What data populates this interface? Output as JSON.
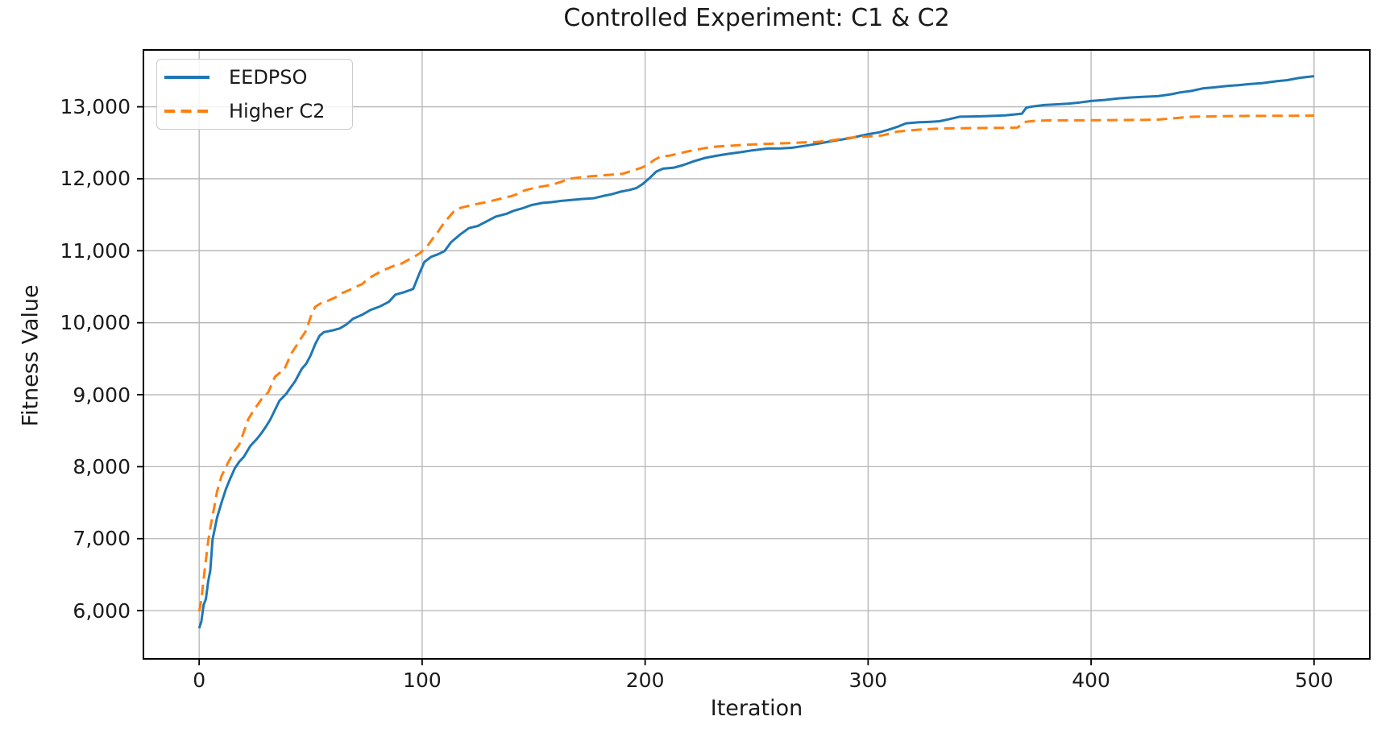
{
  "chart_data": {
    "type": "line",
    "title": "Controlled Experiment: C1 & C2",
    "xlabel": "Iteration",
    "ylabel": "Fitness Value",
    "xlim": [
      -25,
      525
    ],
    "ylim": [
      5330,
      13790
    ],
    "grid": true,
    "legend_position": "upper left",
    "x_ticks": [
      0,
      100,
      200,
      300,
      400,
      500
    ],
    "x_tick_labels": [
      "0",
      "100",
      "200",
      "300",
      "400",
      "500"
    ],
    "y_ticks": [
      6000,
      7000,
      8000,
      9000,
      10000,
      11000,
      12000,
      13000
    ],
    "y_tick_labels": [
      "6,000",
      "7,000",
      "8,000",
      "9,000",
      "10,000",
      "11,000",
      "12,000",
      "13,000"
    ],
    "colors": {
      "grid": "#b4b4b4",
      "spine": "#000000",
      "text": "#1a1a1a",
      "background": "#ffffff"
    },
    "series": [
      {
        "name": "EEDPSO",
        "color": "#1f77b4",
        "style": "solid",
        "points": [
          [
            0,
            5755
          ],
          [
            1,
            5850
          ],
          [
            2,
            6080
          ],
          [
            3,
            6160
          ],
          [
            4,
            6400
          ],
          [
            5,
            6560
          ],
          [
            6,
            6990
          ],
          [
            7,
            7140
          ],
          [
            8,
            7290
          ],
          [
            10,
            7500
          ],
          [
            12,
            7690
          ],
          [
            14,
            7840
          ],
          [
            16,
            7980
          ],
          [
            18,
            8070
          ],
          [
            20,
            8135
          ],
          [
            23,
            8290
          ],
          [
            26,
            8390
          ],
          [
            28,
            8470
          ],
          [
            30,
            8560
          ],
          [
            32,
            8660
          ],
          [
            34,
            8790
          ],
          [
            36,
            8915
          ],
          [
            39,
            9010
          ],
          [
            41,
            9100
          ],
          [
            43,
            9185
          ],
          [
            46,
            9360
          ],
          [
            48,
            9430
          ],
          [
            50,
            9545
          ],
          [
            52,
            9700
          ],
          [
            54,
            9820
          ],
          [
            56,
            9870
          ],
          [
            60,
            9895
          ],
          [
            63,
            9920
          ],
          [
            66,
            9975
          ],
          [
            69,
            10055
          ],
          [
            73,
            10110
          ],
          [
            77,
            10180
          ],
          [
            81,
            10225
          ],
          [
            85,
            10290
          ],
          [
            88,
            10390
          ],
          [
            92,
            10425
          ],
          [
            96,
            10470
          ],
          [
            99,
            10700
          ],
          [
            101,
            10845
          ],
          [
            104,
            10915
          ],
          [
            107,
            10950
          ],
          [
            110,
            10995
          ],
          [
            113,
            11120
          ],
          [
            117,
            11225
          ],
          [
            121,
            11315
          ],
          [
            125,
            11345
          ],
          [
            129,
            11410
          ],
          [
            133,
            11475
          ],
          [
            138,
            11515
          ],
          [
            141,
            11555
          ],
          [
            145,
            11590
          ],
          [
            149,
            11635
          ],
          [
            154,
            11665
          ],
          [
            158,
            11675
          ],
          [
            163,
            11695
          ],
          [
            167,
            11705
          ],
          [
            172,
            11720
          ],
          [
            177,
            11730
          ],
          [
            181,
            11760
          ],
          [
            185,
            11785
          ],
          [
            189,
            11820
          ],
          [
            193,
            11845
          ],
          [
            196,
            11870
          ],
          [
            199,
            11930
          ],
          [
            202,
            12010
          ],
          [
            205,
            12100
          ],
          [
            208,
            12140
          ],
          [
            213,
            12155
          ],
          [
            217,
            12190
          ],
          [
            222,
            12245
          ],
          [
            227,
            12290
          ],
          [
            232,
            12320
          ],
          [
            237,
            12345
          ],
          [
            243,
            12370
          ],
          [
            248,
            12395
          ],
          [
            255,
            12420
          ],
          [
            261,
            12422
          ],
          [
            266,
            12432
          ],
          [
            271,
            12455
          ],
          [
            278,
            12490
          ],
          [
            283,
            12520
          ],
          [
            288,
            12545
          ],
          [
            293,
            12570
          ],
          [
            297,
            12600
          ],
          [
            301,
            12625
          ],
          [
            305,
            12645
          ],
          [
            309,
            12680
          ],
          [
            313,
            12720
          ],
          [
            317,
            12770
          ],
          [
            323,
            12785
          ],
          [
            328,
            12792
          ],
          [
            332,
            12800
          ],
          [
            336,
            12825
          ],
          [
            341,
            12862
          ],
          [
            347,
            12866
          ],
          [
            352,
            12870
          ],
          [
            357,
            12875
          ],
          [
            362,
            12882
          ],
          [
            366,
            12895
          ],
          [
            369,
            12905
          ],
          [
            371,
            12990
          ],
          [
            375,
            13010
          ],
          [
            379,
            13025
          ],
          [
            385,
            13035
          ],
          [
            390,
            13045
          ],
          [
            395,
            13060
          ],
          [
            400,
            13080
          ],
          [
            406,
            13095
          ],
          [
            412,
            13115
          ],
          [
            418,
            13130
          ],
          [
            424,
            13140
          ],
          [
            430,
            13148
          ],
          [
            436,
            13175
          ],
          [
            440,
            13200
          ],
          [
            445,
            13220
          ],
          [
            450,
            13255
          ],
          [
            455,
            13270
          ],
          [
            461,
            13290
          ],
          [
            466,
            13300
          ],
          [
            471,
            13315
          ],
          [
            477,
            13330
          ],
          [
            483,
            13355
          ],
          [
            488,
            13370
          ],
          [
            493,
            13400
          ],
          [
            497,
            13415
          ],
          [
            500,
            13425
          ]
        ]
      },
      {
        "name": "Higher C2",
        "color": "#ff7f0e",
        "style": "dashed",
        "points": [
          [
            0,
            5990
          ],
          [
            1,
            6150
          ],
          [
            2,
            6440
          ],
          [
            3,
            6700
          ],
          [
            4,
            6960
          ],
          [
            5,
            7150
          ],
          [
            6,
            7320
          ],
          [
            7,
            7480
          ],
          [
            8,
            7650
          ],
          [
            10,
            7870
          ],
          [
            13,
            8060
          ],
          [
            16,
            8225
          ],
          [
            18,
            8310
          ],
          [
            20,
            8480
          ],
          [
            22,
            8660
          ],
          [
            24,
            8760
          ],
          [
            26,
            8850
          ],
          [
            28,
            8940
          ],
          [
            31,
            9035
          ],
          [
            33,
            9180
          ],
          [
            34,
            9250
          ],
          [
            36,
            9300
          ],
          [
            38,
            9335
          ],
          [
            40,
            9480
          ],
          [
            41,
            9555
          ],
          [
            44,
            9700
          ],
          [
            46,
            9800
          ],
          [
            48,
            9890
          ],
          [
            50,
            10080
          ],
          [
            52,
            10220
          ],
          [
            55,
            10280
          ],
          [
            58,
            10310
          ],
          [
            61,
            10350
          ],
          [
            64,
            10410
          ],
          [
            67,
            10450
          ],
          [
            70,
            10495
          ],
          [
            73,
            10535
          ],
          [
            76,
            10615
          ],
          [
            79,
            10670
          ],
          [
            82,
            10720
          ],
          [
            85,
            10760
          ],
          [
            88,
            10800
          ],
          [
            91,
            10825
          ],
          [
            93,
            10860
          ],
          [
            96,
            10910
          ],
          [
            99,
            10965
          ],
          [
            102,
            11050
          ],
          [
            105,
            11180
          ],
          [
            107,
            11260
          ],
          [
            109,
            11350
          ],
          [
            111,
            11430
          ],
          [
            114,
            11540
          ],
          [
            116,
            11585
          ],
          [
            119,
            11610
          ],
          [
            123,
            11640
          ],
          [
            128,
            11670
          ],
          [
            132,
            11700
          ],
          [
            136,
            11730
          ],
          [
            140,
            11760
          ],
          [
            143,
            11790
          ],
          [
            146,
            11840
          ],
          [
            150,
            11870
          ],
          [
            153,
            11890
          ],
          [
            157,
            11910
          ],
          [
            160,
            11935
          ],
          [
            163,
            11965
          ],
          [
            166,
            12000
          ],
          [
            171,
            12020
          ],
          [
            176,
            12035
          ],
          [
            181,
            12048
          ],
          [
            186,
            12060
          ],
          [
            190,
            12070
          ],
          [
            194,
            12110
          ],
          [
            198,
            12150
          ],
          [
            201,
            12190
          ],
          [
            204,
            12260
          ],
          [
            207,
            12310
          ],
          [
            211,
            12322
          ],
          [
            215,
            12350
          ],
          [
            219,
            12380
          ],
          [
            224,
            12410
          ],
          [
            228,
            12432
          ],
          [
            233,
            12450
          ],
          [
            238,
            12458
          ],
          [
            243,
            12470
          ],
          [
            250,
            12480
          ],
          [
            257,
            12487
          ],
          [
            264,
            12495
          ],
          [
            271,
            12505
          ],
          [
            277,
            12512
          ],
          [
            283,
            12530
          ],
          [
            290,
            12565
          ],
          [
            296,
            12580
          ],
          [
            301,
            12590
          ],
          [
            306,
            12600
          ],
          [
            310,
            12630
          ],
          [
            313,
            12655
          ],
          [
            318,
            12670
          ],
          [
            324,
            12685
          ],
          [
            330,
            12695
          ],
          [
            336,
            12700
          ],
          [
            344,
            12703
          ],
          [
            352,
            12706
          ],
          [
            360,
            12708
          ],
          [
            367,
            12711
          ],
          [
            370,
            12790
          ],
          [
            375,
            12805
          ],
          [
            382,
            12812
          ],
          [
            390,
            12812
          ],
          [
            400,
            12813
          ],
          [
            410,
            12815
          ],
          [
            420,
            12818
          ],
          [
            430,
            12822
          ],
          [
            437,
            12840
          ],
          [
            443,
            12858
          ],
          [
            447,
            12862
          ],
          [
            453,
            12866
          ],
          [
            460,
            12870
          ],
          [
            470,
            12873
          ],
          [
            480,
            12875
          ],
          [
            490,
            12876
          ],
          [
            500,
            12878
          ]
        ]
      }
    ]
  }
}
